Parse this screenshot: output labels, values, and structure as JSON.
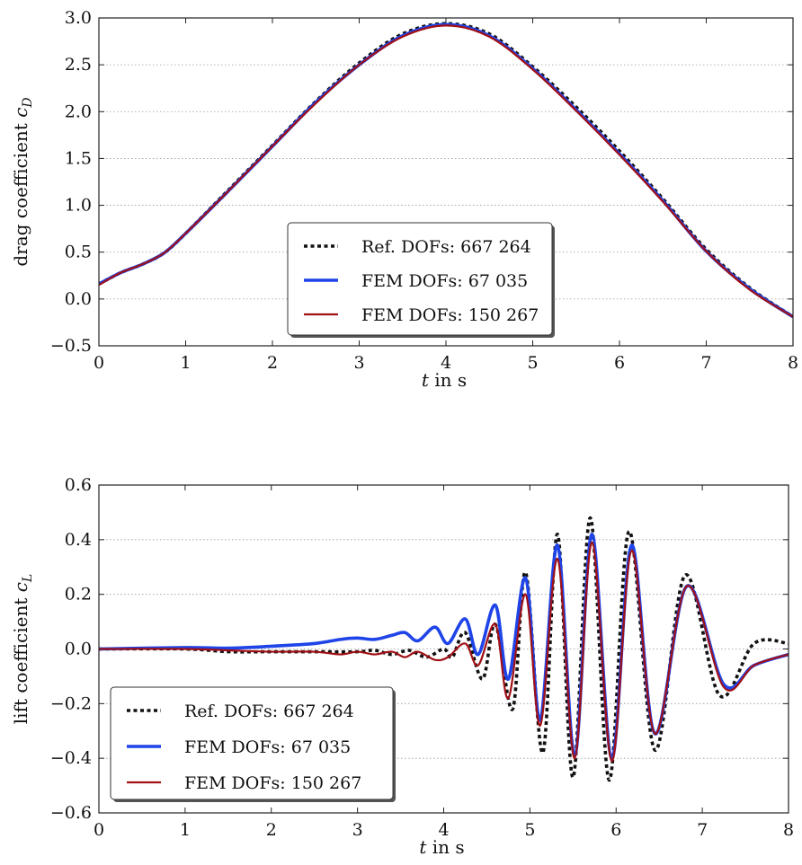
{
  "colors": {
    "ref": "#111111",
    "fem_coarse": "#1f44e8",
    "fem_fine": "#a01016",
    "grid": "#9a9a9a"
  },
  "chart_data": [
    {
      "type": "line",
      "xlabel": "t in s",
      "ylabel": "drag coefficient c_D",
      "ylabel_main": "drag coefficient ",
      "ylabel_var": "c",
      "ylabel_sub": "D",
      "xlim": [
        0,
        8
      ],
      "ylim": [
        -0.5,
        3.0
      ],
      "xticks": [
        "0",
        "1",
        "2",
        "3",
        "4",
        "5",
        "6",
        "7",
        "8"
      ],
      "yticks": [
        "−0.5",
        "0.0",
        "0.5",
        "1.0",
        "1.5",
        "2.0",
        "2.5",
        "3.0"
      ],
      "grid": "horizontal",
      "legend_position": "lower-center",
      "series": [
        {
          "name": "Ref. DOFs: 667 264",
          "style": "dotted",
          "x": [
            0,
            0.25,
            0.5,
            0.75,
            1,
            1.5,
            2,
            2.5,
            3,
            3.5,
            4,
            4.5,
            5,
            5.5,
            6,
            6.5,
            7,
            7.5,
            8
          ],
          "y": [
            0.16,
            0.28,
            0.37,
            0.49,
            0.7,
            1.17,
            1.64,
            2.11,
            2.52,
            2.83,
            2.94,
            2.83,
            2.48,
            2.05,
            1.58,
            1.07,
            0.53,
            0.12,
            -0.19
          ]
        },
        {
          "name": "FEM DOFs: 67 035",
          "style": "solid",
          "x": [
            0,
            0.25,
            0.5,
            0.75,
            1,
            1.5,
            2,
            2.5,
            3,
            3.5,
            4,
            4.5,
            5,
            5.5,
            6,
            6.5,
            7,
            7.5,
            8
          ],
          "y": [
            0.16,
            0.28,
            0.37,
            0.49,
            0.7,
            1.16,
            1.63,
            2.1,
            2.5,
            2.81,
            2.93,
            2.81,
            2.46,
            2.02,
            1.55,
            1.05,
            0.51,
            0.11,
            -0.19
          ]
        },
        {
          "name": "FEM DOFs: 150 267",
          "style": "solid",
          "x": [
            0,
            0.25,
            0.5,
            0.75,
            1,
            1.5,
            2,
            2.5,
            3,
            3.5,
            4,
            4.5,
            5,
            5.5,
            6,
            6.5,
            7,
            7.5,
            8
          ],
          "y": [
            0.15,
            0.28,
            0.37,
            0.49,
            0.7,
            1.16,
            1.63,
            2.09,
            2.5,
            2.8,
            2.92,
            2.8,
            2.45,
            2.01,
            1.54,
            1.04,
            0.51,
            0.1,
            -0.19
          ]
        }
      ]
    },
    {
      "type": "line",
      "xlabel": "t in s",
      "ylabel": "lift coefficient c_L",
      "ylabel_main": "lift coefficient ",
      "ylabel_var": "c",
      "ylabel_sub": "L",
      "xlim": [
        0,
        8
      ],
      "ylim": [
        -0.6,
        0.6
      ],
      "xticks": [
        "0",
        "1",
        "2",
        "3",
        "4",
        "5",
        "6",
        "7",
        "8"
      ],
      "yticks": [
        "−0.6",
        "−0.4",
        "−0.2",
        "0.0",
        "0.2",
        "0.4",
        "0.6"
      ],
      "grid": "horizontal",
      "legend_position": "lower-left",
      "series": [
        {
          "name": "Ref. DOFs: 667 264",
          "style": "dotted",
          "x": [
            0,
            1,
            1.5,
            2,
            2.5,
            3,
            3.2,
            3.4,
            3.6,
            3.8,
            4.0,
            4.1,
            4.25,
            4.45,
            4.6,
            4.8,
            4.95,
            5.15,
            5.32,
            5.5,
            5.7,
            5.92,
            6.15,
            6.45,
            6.8,
            7.2,
            7.6,
            8.0
          ],
          "y": [
            0,
            0,
            -0.01,
            -0.01,
            -0.01,
            -0.01,
            -0.005,
            -0.02,
            -0.005,
            -0.03,
            0.0,
            -0.03,
            0.06,
            -0.11,
            0.09,
            -0.22,
            0.28,
            -0.38,
            0.42,
            -0.47,
            0.48,
            -0.48,
            0.43,
            -0.37,
            0.27,
            -0.17,
            0.02,
            0.02
          ]
        },
        {
          "name": "FEM DOFs: 67 035",
          "style": "solid",
          "x": [
            0,
            1,
            1.5,
            2,
            2.5,
            2.8,
            3.0,
            3.2,
            3.4,
            3.55,
            3.7,
            3.9,
            4.05,
            4.25,
            4.4,
            4.6,
            4.75,
            4.95,
            5.12,
            5.32,
            5.52,
            5.72,
            5.95,
            6.18,
            6.45,
            6.82,
            7.25,
            7.6,
            8.0
          ],
          "y": [
            0,
            0.005,
            0.003,
            0.01,
            0.02,
            0.035,
            0.04,
            0.035,
            0.05,
            0.06,
            0.03,
            0.08,
            0.02,
            0.11,
            -0.02,
            0.16,
            -0.11,
            0.26,
            -0.26,
            0.38,
            -0.39,
            0.42,
            -0.4,
            0.38,
            -0.31,
            0.23,
            -0.13,
            -0.06,
            -0.02
          ]
        },
        {
          "name": "FEM DOFs: 150 267",
          "style": "solid",
          "x": [
            0,
            1,
            1.5,
            2,
            2.5,
            2.8,
            3.0,
            3.2,
            3.4,
            3.55,
            3.7,
            3.9,
            4.05,
            4.25,
            4.4,
            4.6,
            4.75,
            4.95,
            5.12,
            5.32,
            5.52,
            5.72,
            5.95,
            6.18,
            6.45,
            6.82,
            7.25,
            7.6,
            8.0
          ],
          "y": [
            0,
            0.0,
            -0.005,
            -0.01,
            -0.01,
            -0.02,
            -0.01,
            -0.02,
            -0.01,
            -0.03,
            -0.01,
            -0.04,
            -0.03,
            0.02,
            -0.06,
            0.09,
            -0.18,
            0.2,
            -0.28,
            0.33,
            -0.4,
            0.39,
            -0.41,
            0.36,
            -0.31,
            0.23,
            -0.14,
            -0.06,
            -0.02
          ]
        }
      ]
    }
  ]
}
